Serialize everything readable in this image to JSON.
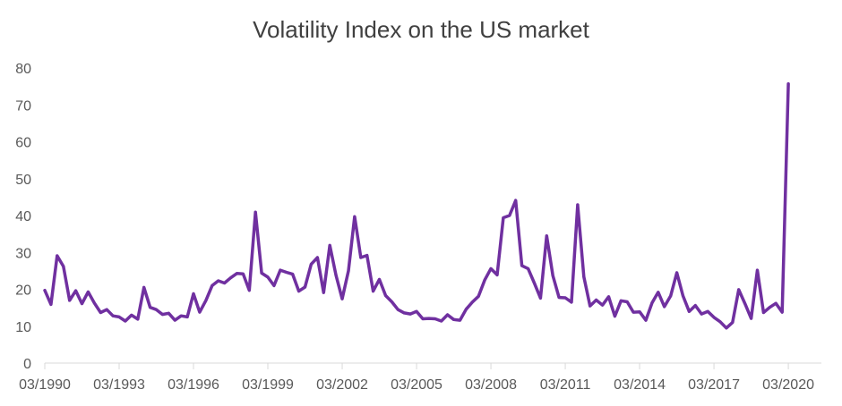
{
  "chart_data": {
    "type": "line",
    "title": "Volatility Index on the US market",
    "xlabel": "",
    "ylabel": "",
    "ylim": [
      0,
      80
    ],
    "yticks": [
      0,
      10,
      20,
      30,
      40,
      50,
      60,
      70,
      80
    ],
    "xlim": [
      1990.0,
      2020.25
    ],
    "xtick_labels": [
      "03/1990",
      "03/1993",
      "03/1996",
      "03/1999",
      "03/2002",
      "03/2005",
      "03/2008",
      "03/2011",
      "03/2014",
      "03/2017",
      "03/2020"
    ],
    "grid": false,
    "legend": "none",
    "line_color": "#7030a0",
    "series": [
      {
        "x": [
          "03/1990",
          "06/1990",
          "09/1990",
          "12/1990",
          "03/1991",
          "06/1991",
          "09/1991",
          "12/1991",
          "03/1992",
          "06/1992",
          "09/1992",
          "12/1992",
          "03/1993",
          "06/1993",
          "09/1993",
          "12/1993",
          "03/1994",
          "06/1994",
          "09/1994",
          "12/1994",
          "03/1995",
          "06/1995",
          "09/1995",
          "12/1995",
          "03/1996",
          "06/1996",
          "09/1996",
          "12/1996",
          "03/1997",
          "06/1997",
          "09/1997",
          "12/1997",
          "03/1998",
          "06/1998",
          "09/1998",
          "12/1998",
          "03/1999",
          "06/1999",
          "09/1999",
          "12/1999",
          "03/2000",
          "06/2000",
          "09/2000",
          "12/2000",
          "03/2001",
          "06/2001",
          "09/2001",
          "12/2001",
          "03/2002",
          "06/2002",
          "09/2002",
          "12/2002",
          "03/2003",
          "06/2003",
          "09/2003",
          "12/2003",
          "03/2004",
          "06/2004",
          "09/2004",
          "12/2004",
          "03/2005",
          "06/2005",
          "09/2005",
          "12/2005",
          "03/2006",
          "06/2006",
          "09/2006",
          "12/2006",
          "03/2007",
          "06/2007",
          "09/2007",
          "12/2007",
          "03/2008",
          "06/2008",
          "09/2008",
          "12/2008",
          "03/2009",
          "06/2009",
          "09/2009",
          "12/2009",
          "03/2010",
          "06/2010",
          "09/2010",
          "12/2010",
          "03/2011",
          "06/2011",
          "09/2011",
          "12/2011",
          "03/2012",
          "06/2012",
          "09/2012",
          "12/2012",
          "03/2013",
          "06/2013",
          "09/2013",
          "12/2013",
          "03/2014",
          "06/2014",
          "09/2014",
          "12/2014",
          "03/2015",
          "06/2015",
          "09/2015",
          "12/2015",
          "03/2016",
          "06/2016",
          "09/2016",
          "12/2016",
          "03/2017",
          "06/2017",
          "09/2017",
          "12/2017",
          "03/2018",
          "06/2018",
          "09/2018",
          "12/2018",
          "03/2019",
          "06/2019",
          "09/2019",
          "12/2019",
          "03/2020"
        ],
        "values": [
          19.7,
          15.9,
          29.1,
          26.2,
          17.0,
          19.6,
          16.1,
          19.3,
          16.3,
          13.7,
          14.5,
          12.8,
          12.5,
          11.4,
          13.0,
          11.9,
          20.5,
          15.1,
          14.5,
          13.2,
          13.5,
          11.6,
          12.8,
          12.5,
          18.8,
          13.8,
          17.0,
          21.0,
          22.3,
          21.7,
          23.1,
          24.3,
          24.2,
          19.7,
          40.9,
          24.4,
          23.3,
          21.0,
          25.2,
          24.6,
          24.1,
          19.5,
          20.6,
          26.8,
          28.6,
          19.1,
          31.9,
          23.8,
          17.4,
          25.0,
          39.7,
          28.6,
          29.2,
          19.5,
          22.7,
          18.3,
          16.6,
          14.5,
          13.6,
          13.3,
          14.0,
          12.0,
          12.1,
          12.0,
          11.4,
          13.1,
          11.8,
          11.6,
          14.6,
          16.5,
          18.1,
          22.5,
          25.6,
          23.9,
          39.4,
          40.0,
          44.1,
          26.4,
          25.6,
          21.7,
          17.6,
          34.5,
          23.7,
          17.8,
          17.7,
          16.5,
          42.9,
          23.4,
          15.5,
          17.1,
          15.7,
          18.0,
          12.7,
          16.9,
          16.6,
          13.8,
          13.9,
          11.6,
          16.3,
          19.2,
          15.3,
          18.2,
          24.5,
          18.2,
          14.0,
          15.6,
          13.3,
          14.0,
          12.4,
          11.2,
          9.5,
          11.0,
          19.9,
          16.1,
          12.1,
          25.2,
          13.7,
          15.1,
          16.2,
          13.8,
          75.7
        ]
      }
    ]
  }
}
